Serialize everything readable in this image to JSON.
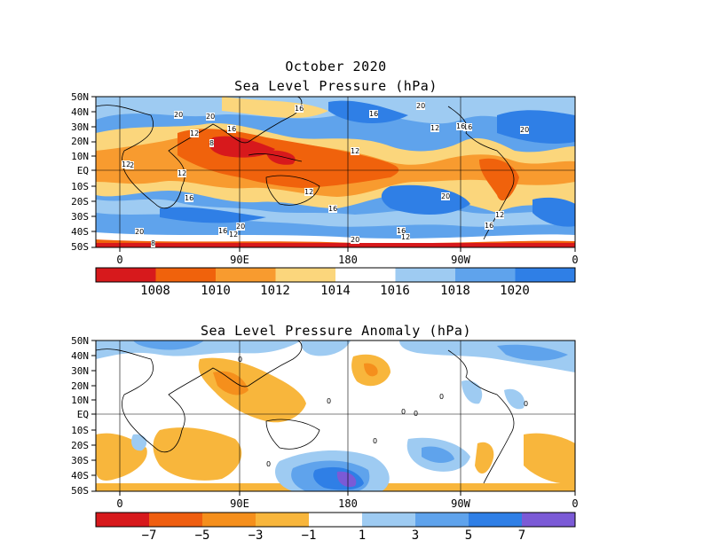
{
  "map1": {
    "title": "October 2020",
    "subtitle": "Sea Level Pressure (hPa)",
    "lat_labels": [
      "50N",
      "40N",
      "30N",
      "20N",
      "10N",
      "EQ",
      "10S",
      "20S",
      "30S",
      "40S",
      "50S"
    ],
    "lon_labels": [
      "0",
      "90E",
      "180",
      "90W",
      "0"
    ],
    "contour_labels": [
      "20",
      "16",
      "12",
      "8",
      "20",
      "16",
      "12",
      "16",
      "16",
      "20",
      "20",
      "16",
      "12",
      "12",
      "12",
      "16",
      "12",
      "16",
      "20",
      "20",
      "12",
      "16",
      "20",
      "16",
      "12",
      "12",
      "20",
      "16",
      "12",
      "8"
    ],
    "colorbar_labels": [
      "1008",
      "1010",
      "1012",
      "1014",
      "1016",
      "1018",
      "1020"
    ],
    "colorbar_colors": [
      "#d7191c",
      "#f0620c",
      "#f89b2f",
      "#fbd67c",
      "#ffffff",
      "#9ecbf2",
      "#5fa3ec",
      "#2f7fe6"
    ]
  },
  "map2": {
    "title": "Sea Level Pressure Anomaly (hPa)",
    "lat_labels": [
      "50N",
      "40N",
      "30N",
      "20N",
      "10N",
      "EQ",
      "10S",
      "20S",
      "30S",
      "40S",
      "50S"
    ],
    "lon_labels": [
      "0",
      "90E",
      "180",
      "90W",
      "0"
    ],
    "contour_labels": [
      "0",
      "0",
      "0",
      "0",
      "0",
      "0",
      "0",
      "0"
    ],
    "colorbar_labels": [
      "−7",
      "−5",
      "−3",
      "−1",
      "1",
      "3",
      "5",
      "7"
    ],
    "colorbar_colors": [
      "#d7191c",
      "#ef5e10",
      "#f58f1c",
      "#f8b63c",
      "#ffffff",
      "#9ecbf2",
      "#5fa3ec",
      "#2f7fe6",
      "#7b5ad6"
    ]
  }
}
